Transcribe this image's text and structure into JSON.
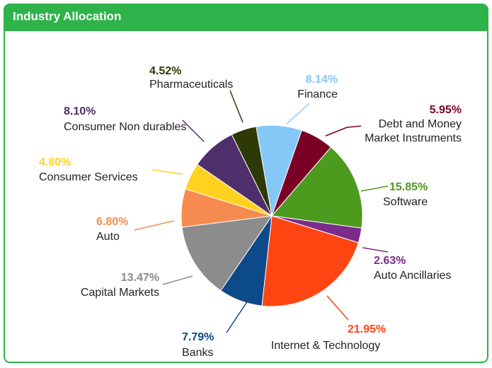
{
  "chart_data": {
    "type": "pie",
    "title": "Industry Allocation",
    "categories": [
      "Finance",
      "Debt and Money\nMarket Instruments",
      "Software",
      "Auto Ancillaries",
      "Internet & Technology",
      "Banks",
      "Capital Markets",
      "Auto",
      "Consumer Services",
      "Consumer Non durables",
      "Pharmaceuticals"
    ],
    "values": [
      8.14,
      5.95,
      15.85,
      2.63,
      21.95,
      7.79,
      13.47,
      6.8,
      4.8,
      8.1,
      4.52
    ],
    "value_labels": [
      "8.14%",
      "5.95%",
      "15.85%",
      "2.63%",
      "21.95%",
      "7.79%",
      "13.47%",
      "6.80%",
      "4.80%",
      "8.10%",
      "4.52%"
    ],
    "colors": [
      "#85c8f8",
      "#7a0025",
      "#4c9a1e",
      "#7b2b8a",
      "#ff4512",
      "#0d4a8a",
      "#8c8c8c",
      "#f78a4e",
      "#ffd21f",
      "#4e2f6c",
      "#2e3a05"
    ]
  }
}
